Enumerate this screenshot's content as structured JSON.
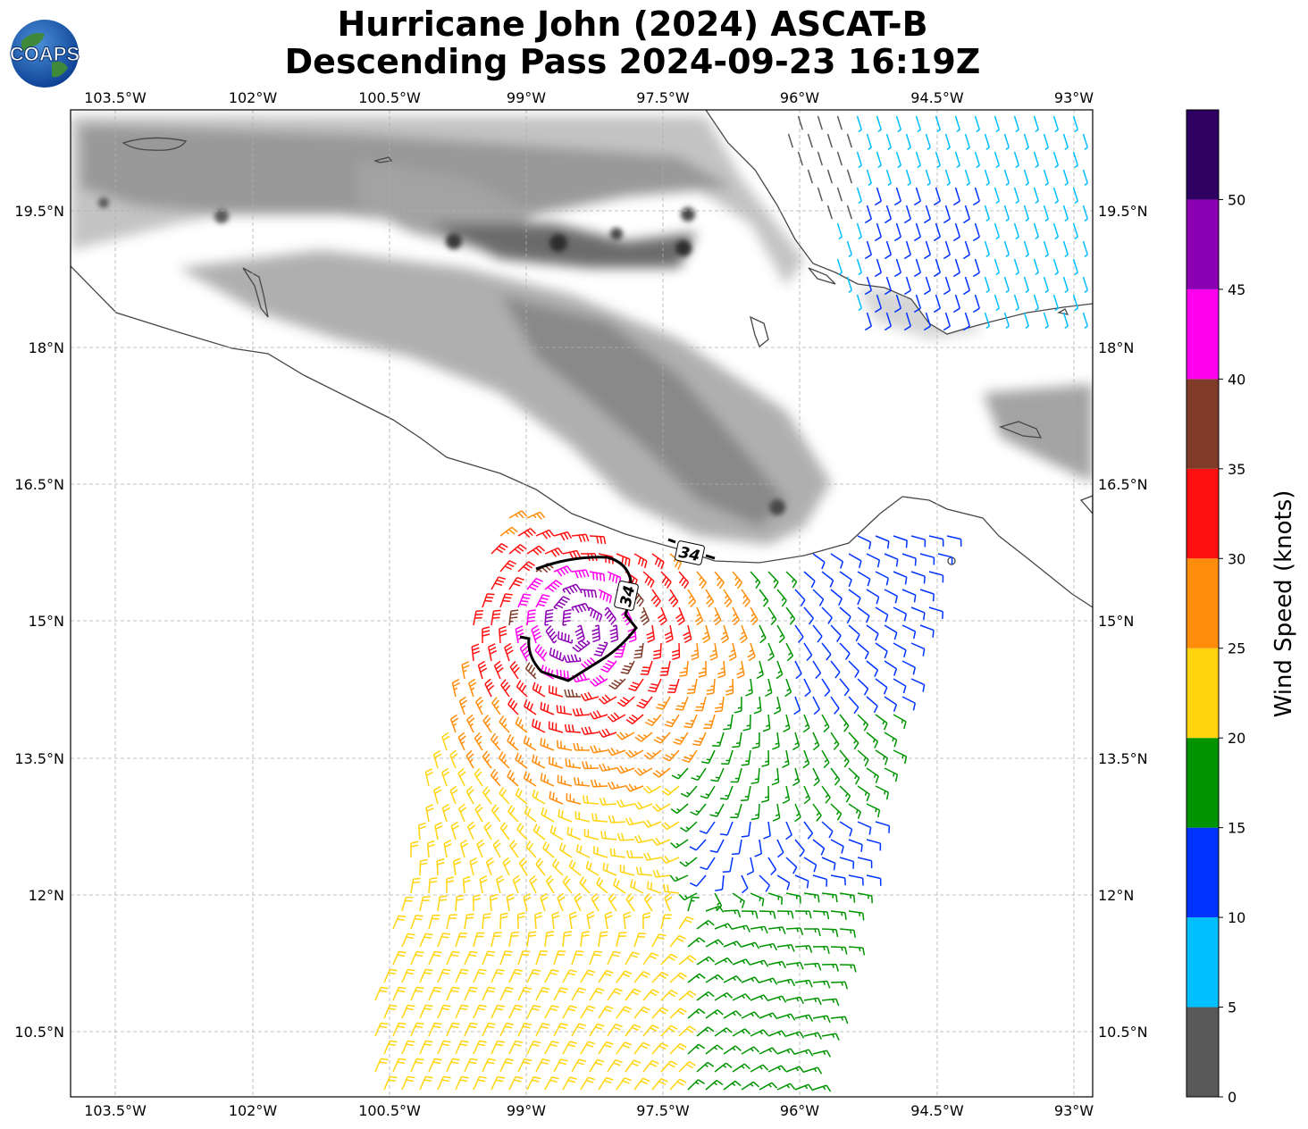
{
  "title_line1": "Hurricane John (2024) ASCAT-B",
  "title_line2": "Descending Pass 2024-09-23 16:19Z",
  "logo_text": "COAPS",
  "lon_ticks": [
    "103.5°W",
    "102°W",
    "100.5°W",
    "99°W",
    "97.5°W",
    "96°W",
    "94.5°W",
    "93°W"
  ],
  "lat_ticks": [
    "19.5°N",
    "18°N",
    "16.5°N",
    "15°N",
    "13.5°N",
    "12°N",
    "10.5°N"
  ],
  "contour_label": "34",
  "colorbar": {
    "label": "Wind Speed (knots)",
    "ticks": [
      "0",
      "5",
      "10",
      "15",
      "20",
      "25",
      "30",
      "35",
      "40",
      "45",
      "50"
    ],
    "bins": [
      {
        "min": 0,
        "max": 5,
        "color": "#595959"
      },
      {
        "min": 5,
        "max": 10,
        "color": "#00bfff"
      },
      {
        "min": 10,
        "max": 15,
        "color": "#0033ff"
      },
      {
        "min": 15,
        "max": 20,
        "color": "#009400"
      },
      {
        "min": 20,
        "max": 25,
        "color": "#ffd40f"
      },
      {
        "min": 25,
        "max": 30,
        "color": "#ff8c0a"
      },
      {
        "min": 30,
        "max": 35,
        "color": "#ff1010"
      },
      {
        "min": 35,
        "max": 40,
        "color": "#7f3a28"
      },
      {
        "min": 40,
        "max": 45,
        "color": "#ff00ee"
      },
      {
        "min": 45,
        "max": 50,
        "color": "#8c00b4"
      },
      {
        "min": 50,
        "max": 55,
        "color": "#2d0062"
      }
    ]
  },
  "map_extent": {
    "lon_min": -104.0,
    "lon_max": -92.8,
    "lat_min": 9.8,
    "lat_max": 20.6
  },
  "storm_center": {
    "lon": -98.45,
    "lat": 14.95
  }
}
